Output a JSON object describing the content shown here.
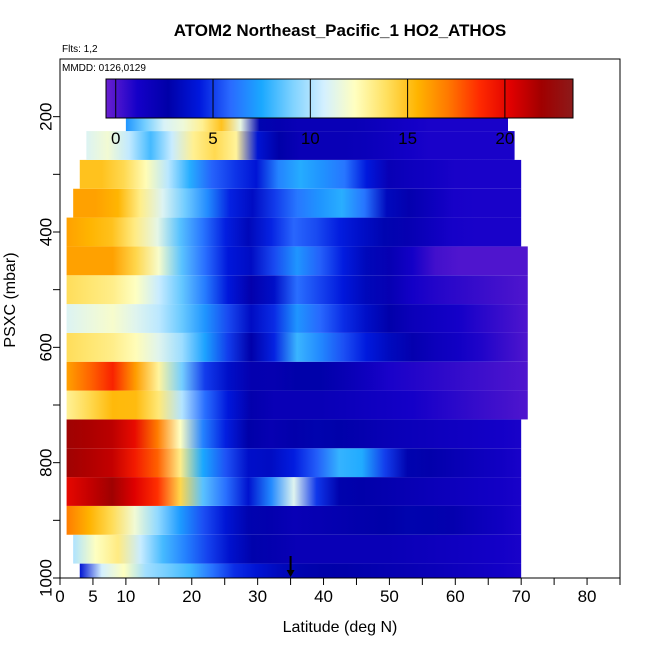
{
  "chart_data": {
    "type": "heatmap",
    "title": "ATOM2 Northeast_Pacific_1 HO2_ATHOS",
    "info_lines": [
      "Flts: 1,2",
      "MMDD: 0126,0129"
    ],
    "xlabel": "Latitude (deg N)",
    "ylabel": "PSXC (mbar)",
    "xlim": [
      0,
      85
    ],
    "ylim": [
      1000,
      100
    ],
    "x_ticks": [
      0,
      5,
      10,
      20,
      30,
      40,
      50,
      60,
      70,
      80
    ],
    "x_minor_ticks": [
      15,
      25,
      35,
      45,
      55,
      65,
      75,
      85
    ],
    "y_ticks": [
      200,
      400,
      600,
      800,
      1000
    ],
    "y_minor_ticks": [
      300,
      500,
      700,
      900
    ],
    "colorbar": {
      "range": [
        -0.5,
        23.5
      ],
      "ticks": [
        0,
        5,
        10,
        15,
        20
      ],
      "colors": [
        "#6a1fd0",
        "#1400c8",
        "#0000a8",
        "#0018dd",
        "#2a6bff",
        "#1aa8ff",
        "#7fd2ff",
        "#d4f0ff",
        "#ffffc0",
        "#ffe060",
        "#ffb400",
        "#ff7800",
        "#ff2a00",
        "#e00000",
        "#a00000",
        "#8c1a1a"
      ]
    },
    "marker_latitude": 35,
    "bands": [
      {
        "pressure": [
          975,
          1000
        ],
        "lat": [
          3,
          70
        ],
        "stops": [
          [
            3,
            4
          ],
          [
            8,
            14
          ],
          [
            12,
            10
          ],
          [
            20,
            8
          ],
          [
            25,
            5
          ],
          [
            35,
            3
          ],
          [
            55,
            2
          ],
          [
            70,
            1
          ]
        ]
      },
      {
        "pressure": [
          925,
          975
        ],
        "lat": [
          2,
          70
        ],
        "stops": [
          [
            2,
            10
          ],
          [
            8,
            14
          ],
          [
            14,
            9
          ],
          [
            20,
            6
          ],
          [
            28,
            3
          ],
          [
            35,
            2
          ],
          [
            50,
            2
          ],
          [
            70,
            1
          ]
        ]
      },
      {
        "pressure": [
          875,
          925
        ],
        "lat": [
          1,
          70
        ],
        "stops": [
          [
            1,
            17
          ],
          [
            8,
            14
          ],
          [
            14,
            10
          ],
          [
            20,
            6
          ],
          [
            28,
            3
          ],
          [
            35,
            2
          ],
          [
            55,
            3
          ],
          [
            70,
            1
          ]
        ]
      },
      {
        "pressure": [
          825,
          875
        ],
        "lat": [
          1,
          70
        ],
        "stops": [
          [
            1,
            20
          ],
          [
            8,
            22
          ],
          [
            16,
            18
          ],
          [
            22,
            8
          ],
          [
            30,
            3
          ],
          [
            35,
            12
          ],
          [
            40,
            3
          ],
          [
            55,
            2
          ],
          [
            70,
            1
          ]
        ]
      },
      {
        "pressure": [
          775,
          825
        ],
        "lat": [
          1,
          70
        ],
        "stops": [
          [
            1,
            22
          ],
          [
            8,
            21
          ],
          [
            16,
            17
          ],
          [
            22,
            7
          ],
          [
            30,
            3
          ],
          [
            38,
            5
          ],
          [
            44,
            9
          ],
          [
            52,
            3
          ],
          [
            70,
            1
          ]
        ]
      },
      {
        "pressure": [
          725,
          775
        ],
        "lat": [
          1,
          70
        ],
        "stops": [
          [
            1,
            22
          ],
          [
            10,
            21
          ],
          [
            16,
            16
          ],
          [
            22,
            6
          ],
          [
            30,
            2
          ],
          [
            40,
            3
          ],
          [
            50,
            2
          ],
          [
            70,
            1
          ]
        ]
      },
      {
        "pressure": [
          675,
          725
        ],
        "lat": [
          1,
          71
        ],
        "stops": [
          [
            1,
            13
          ],
          [
            10,
            16
          ],
          [
            16,
            13
          ],
          [
            22,
            6
          ],
          [
            30,
            2
          ],
          [
            40,
            2
          ],
          [
            55,
            1
          ],
          [
            71,
            0
          ]
        ]
      },
      {
        "pressure": [
          625,
          675
        ],
        "lat": [
          1,
          71
        ],
        "stops": [
          [
            1,
            16
          ],
          [
            8,
            19
          ],
          [
            14,
            14
          ],
          [
            22,
            5
          ],
          [
            30,
            2
          ],
          [
            38,
            3
          ],
          [
            50,
            1
          ],
          [
            71,
            0
          ]
        ]
      },
      {
        "pressure": [
          575,
          625
        ],
        "lat": [
          1,
          71
        ],
        "stops": [
          [
            1,
            14
          ],
          [
            10,
            13
          ],
          [
            18,
            10
          ],
          [
            24,
            6
          ],
          [
            30,
            2
          ],
          [
            36,
            8
          ],
          [
            44,
            5
          ],
          [
            55,
            2
          ],
          [
            71,
            0
          ]
        ]
      },
      {
        "pressure": [
          525,
          575
        ],
        "lat": [
          1,
          71
        ],
        "stops": [
          [
            1,
            11
          ],
          [
            8,
            12
          ],
          [
            16,
            10
          ],
          [
            22,
            7
          ],
          [
            30,
            3
          ],
          [
            36,
            7
          ],
          [
            42,
            5
          ],
          [
            52,
            2
          ],
          [
            71,
            0
          ]
        ]
      },
      {
        "pressure": [
          475,
          525
        ],
        "lat": [
          1,
          71
        ],
        "stops": [
          [
            1,
            14
          ],
          [
            10,
            13
          ],
          [
            18,
            9
          ],
          [
            24,
            5
          ],
          [
            30,
            2
          ],
          [
            36,
            6
          ],
          [
            44,
            4
          ],
          [
            54,
            1
          ],
          [
            71,
            0
          ]
        ]
      },
      {
        "pressure": [
          425,
          475
        ],
        "lat": [
          1,
          71
        ],
        "stops": [
          [
            1,
            16
          ],
          [
            8,
            16
          ],
          [
            14,
            13
          ],
          [
            20,
            7
          ],
          [
            28,
            3
          ],
          [
            36,
            7
          ],
          [
            44,
            4
          ],
          [
            54,
            1
          ],
          [
            58,
            0
          ],
          [
            71,
            0
          ]
        ]
      },
      {
        "pressure": [
          375,
          425
        ],
        "lat": [
          1,
          70
        ],
        "stops": [
          [
            1,
            16
          ],
          [
            8,
            15
          ],
          [
            14,
            12
          ],
          [
            20,
            7
          ],
          [
            28,
            3
          ],
          [
            36,
            6
          ],
          [
            44,
            4
          ],
          [
            54,
            2
          ],
          [
            60,
            1
          ],
          [
            70,
            1
          ]
        ]
      },
      {
        "pressure": [
          325,
          375
        ],
        "lat": [
          2,
          70
        ],
        "stops": [
          [
            2,
            16
          ],
          [
            8,
            16
          ],
          [
            14,
            12
          ],
          [
            22,
            7
          ],
          [
            28,
            3
          ],
          [
            35,
            6
          ],
          [
            44,
            8
          ],
          [
            50,
            3
          ],
          [
            60,
            1
          ],
          [
            70,
            1
          ]
        ]
      },
      {
        "pressure": [
          275,
          325
        ],
        "lat": [
          3,
          70
        ],
        "stops": [
          [
            3,
            15
          ],
          [
            8,
            15
          ],
          [
            14,
            12
          ],
          [
            22,
            6
          ],
          [
            30,
            4
          ],
          [
            35,
            8
          ],
          [
            44,
            6
          ],
          [
            50,
            2
          ],
          [
            60,
            1
          ],
          [
            70,
            1
          ]
        ]
      },
      {
        "pressure": [
          225,
          275
        ],
        "lat": [
          4,
          69
        ],
        "stops": [
          [
            4,
            11
          ],
          [
            8,
            12
          ],
          [
            14,
            8
          ],
          [
            20,
            13
          ],
          [
            26,
            15
          ],
          [
            30,
            4
          ],
          [
            35,
            2
          ],
          [
            45,
            2
          ],
          [
            55,
            1
          ],
          [
            69,
            1
          ]
        ]
      },
      {
        "pressure": [
          170,
          225
        ],
        "lat": [
          10,
          68
        ],
        "stops": [
          [
            10,
            7
          ],
          [
            16,
            11
          ],
          [
            20,
            12
          ],
          [
            26,
            16
          ],
          [
            30,
            3
          ],
          [
            35,
            2
          ],
          [
            45,
            2
          ],
          [
            55,
            1
          ],
          [
            68,
            1
          ]
        ]
      }
    ]
  }
}
